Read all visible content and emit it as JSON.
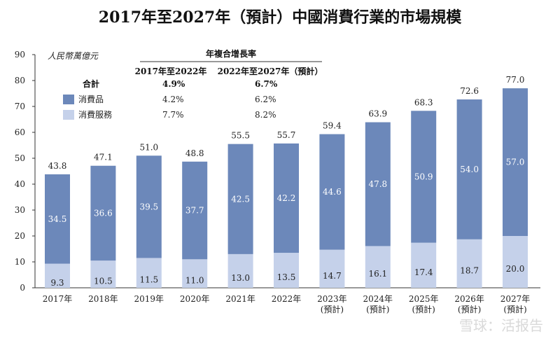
{
  "chart_data": {
    "type": "bar",
    "stacked": true,
    "title": "2017年至2027年（預計）中國消費行業的市場規模",
    "unit_label": "人民幣萬億元",
    "categories": [
      [
        "2017年"
      ],
      [
        "2018年"
      ],
      [
        "2019年"
      ],
      [
        "2020年"
      ],
      [
        "2021年"
      ],
      [
        "2022年"
      ],
      [
        "2023年",
        "(預計)"
      ],
      [
        "2024年",
        "(預計)"
      ],
      [
        "2025年",
        "(預計)"
      ],
      [
        "2026年",
        "(預計)"
      ],
      [
        "2027年",
        "(預計)"
      ]
    ],
    "series": [
      {
        "name": "消費服務",
        "color": "#c5d1ea",
        "values": [
          9.3,
          10.5,
          11.5,
          11.0,
          13.0,
          13.5,
          14.7,
          16.1,
          17.4,
          18.7,
          20.0
        ]
      },
      {
        "name": "消費品",
        "color": "#6c88ba",
        "values": [
          34.5,
          36.6,
          39.5,
          37.7,
          42.5,
          42.2,
          44.6,
          47.8,
          50.9,
          54.0,
          57.0
        ]
      }
    ],
    "totals": [
      43.8,
      47.1,
      51.0,
      48.8,
      55.5,
      55.7,
      59.4,
      63.9,
      68.3,
      72.6,
      77.0
    ],
    "ylim": [
      0,
      90
    ],
    "yticks": [
      0,
      10,
      20,
      30,
      40,
      50,
      60,
      70,
      80,
      90
    ],
    "cagr_table": {
      "header": "年複合增長率",
      "columns": [
        "2017年至2022年",
        "2022年至2027年（預計）"
      ],
      "rows": [
        {
          "label": "合計",
          "values": [
            "4.9%",
            "6.7%"
          ],
          "bold": true
        },
        {
          "label": "消費品",
          "values": [
            "4.2%",
            "6.2%"
          ],
          "color": "#6c88ba"
        },
        {
          "label": "消費服務",
          "values": [
            "7.7%",
            "8.2%"
          ],
          "color": "#c5d1ea"
        }
      ]
    }
  },
  "watermark": "雪球：活报告"
}
